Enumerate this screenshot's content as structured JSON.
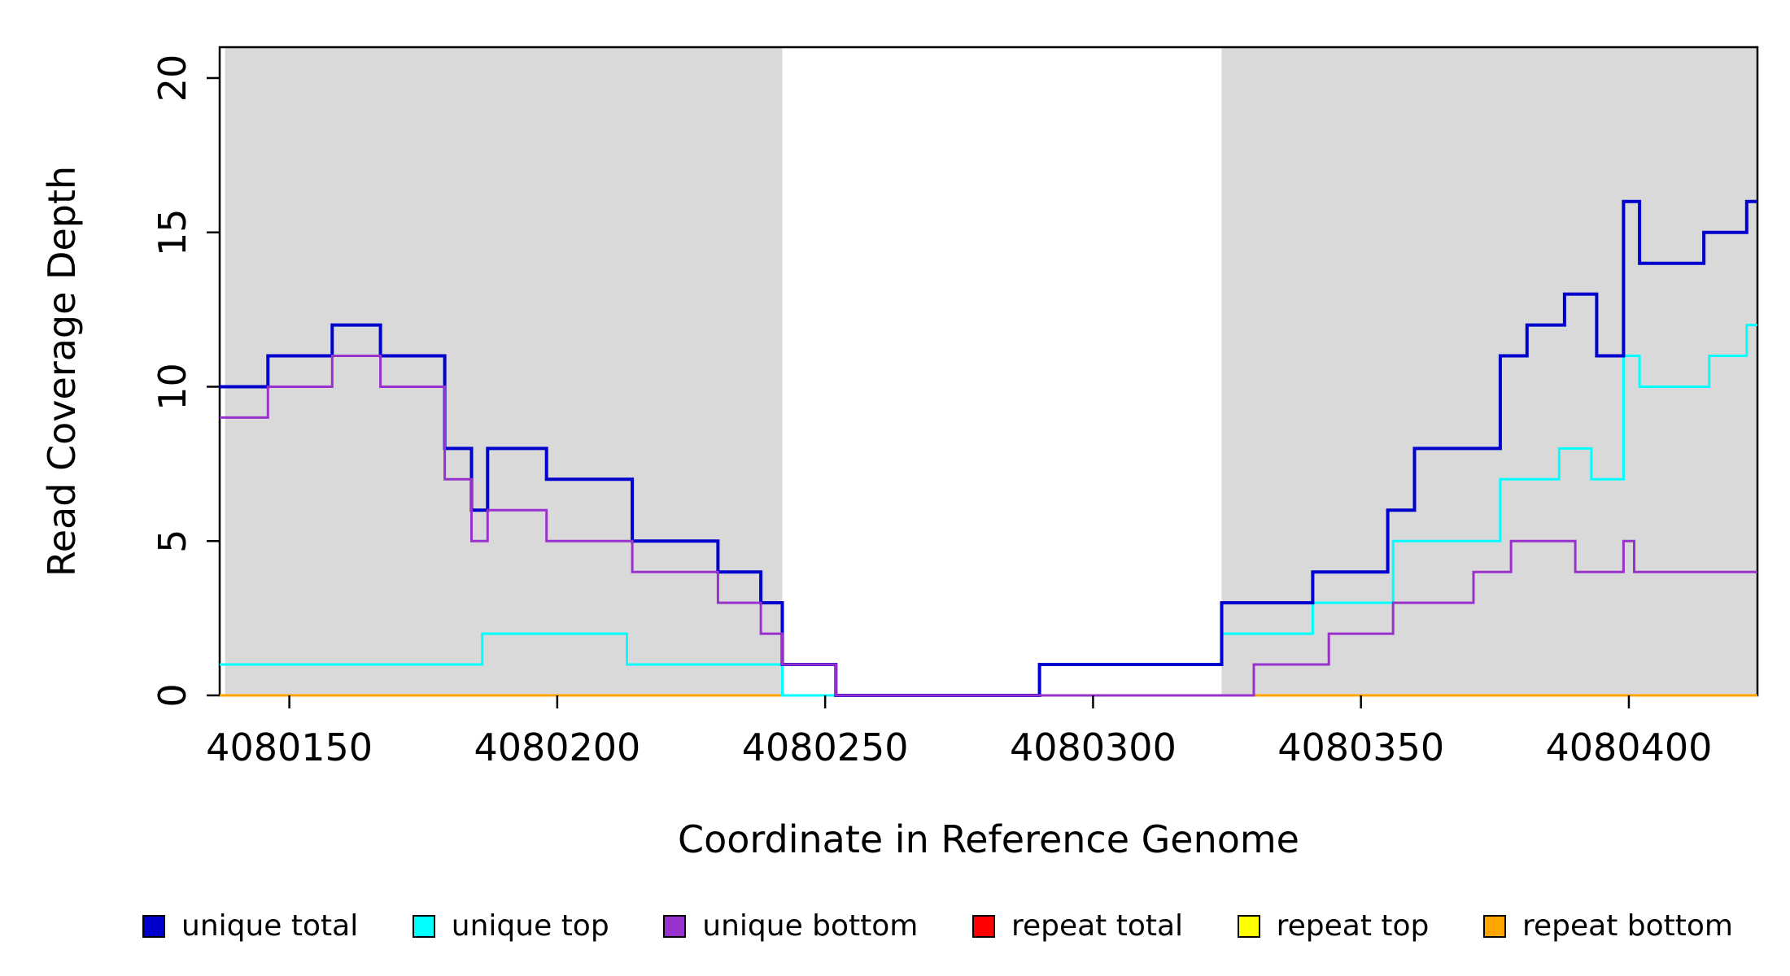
{
  "figure": {
    "background": "#ffffff",
    "plot_border_color": "#000000"
  },
  "chart_data": {
    "type": "line",
    "step": "after",
    "title": "",
    "xlabel": "Coordinate in Reference Genome",
    "ylabel": "Read Coverage Depth",
    "xlim": [
      4080137,
      4080424
    ],
    "ylim": [
      0,
      21
    ],
    "xticks": [
      4080150,
      4080200,
      4080250,
      4080300,
      4080350,
      4080400
    ],
    "yticks": [
      0,
      5,
      10,
      15,
      20
    ],
    "grid": false,
    "legend_position": "bottom",
    "shaded_regions": {
      "color": "#d9d9d9",
      "ranges": [
        [
          4080138,
          4080242
        ],
        [
          4080324,
          4080424
        ]
      ]
    },
    "draw_order": [
      "repeat total",
      "repeat top",
      "repeat bottom",
      "unique top",
      "unique total",
      "unique bottom"
    ],
    "series": [
      {
        "name": "unique total",
        "color": "#0000cd",
        "points": [
          [
            4080137,
            10
          ],
          [
            4080146,
            11
          ],
          [
            4080158,
            12
          ],
          [
            4080167,
            11
          ],
          [
            4080179,
            8
          ],
          [
            4080184,
            6
          ],
          [
            4080187,
            8
          ],
          [
            4080198,
            7
          ],
          [
            4080214,
            5
          ],
          [
            4080230,
            4
          ],
          [
            4080238,
            3
          ],
          [
            4080242,
            1
          ],
          [
            4080252,
            0
          ],
          [
            4080290,
            1
          ],
          [
            4080324,
            3
          ],
          [
            4080341,
            4
          ],
          [
            4080355,
            6
          ],
          [
            4080360,
            8
          ],
          [
            4080376,
            11
          ],
          [
            4080381,
            12
          ],
          [
            4080388,
            13
          ],
          [
            4080394,
            11
          ],
          [
            4080399,
            16
          ],
          [
            4080402,
            14
          ],
          [
            4080414,
            15
          ],
          [
            4080422,
            16
          ]
        ]
      },
      {
        "name": "unique top",
        "color": "#00ffff",
        "points": [
          [
            4080137,
            1
          ],
          [
            4080186,
            2
          ],
          [
            4080213,
            1
          ],
          [
            4080242,
            0
          ],
          [
            4080290,
            1
          ],
          [
            4080324,
            2
          ],
          [
            4080341,
            3
          ],
          [
            4080356,
            5
          ],
          [
            4080376,
            7
          ],
          [
            4080387,
            8
          ],
          [
            4080393,
            7
          ],
          [
            4080399,
            11
          ],
          [
            4080402,
            10
          ],
          [
            4080415,
            11
          ],
          [
            4080422,
            12
          ]
        ]
      },
      {
        "name": "unique bottom",
        "color": "#9932cc",
        "points": [
          [
            4080137,
            9
          ],
          [
            4080146,
            10
          ],
          [
            4080158,
            11
          ],
          [
            4080167,
            10
          ],
          [
            4080179,
            7
          ],
          [
            4080184,
            5
          ],
          [
            4080187,
            6
          ],
          [
            4080198,
            5
          ],
          [
            4080214,
            4
          ],
          [
            4080230,
            3
          ],
          [
            4080238,
            2
          ],
          [
            4080242,
            1
          ],
          [
            4080252,
            0
          ],
          [
            4080330,
            1
          ],
          [
            4080344,
            2
          ],
          [
            4080356,
            3
          ],
          [
            4080371,
            4
          ],
          [
            4080378,
            5
          ],
          [
            4080390,
            4
          ],
          [
            4080399,
            5
          ],
          [
            4080401,
            4
          ]
        ]
      },
      {
        "name": "repeat total",
        "color": "#ff0000",
        "points": [
          [
            4080137,
            0
          ]
        ]
      },
      {
        "name": "repeat top",
        "color": "#ffff00",
        "points": [
          [
            4080137,
            0
          ]
        ]
      },
      {
        "name": "repeat bottom",
        "color": "#ffa500",
        "points": [
          [
            4080137,
            0
          ]
        ]
      }
    ]
  }
}
